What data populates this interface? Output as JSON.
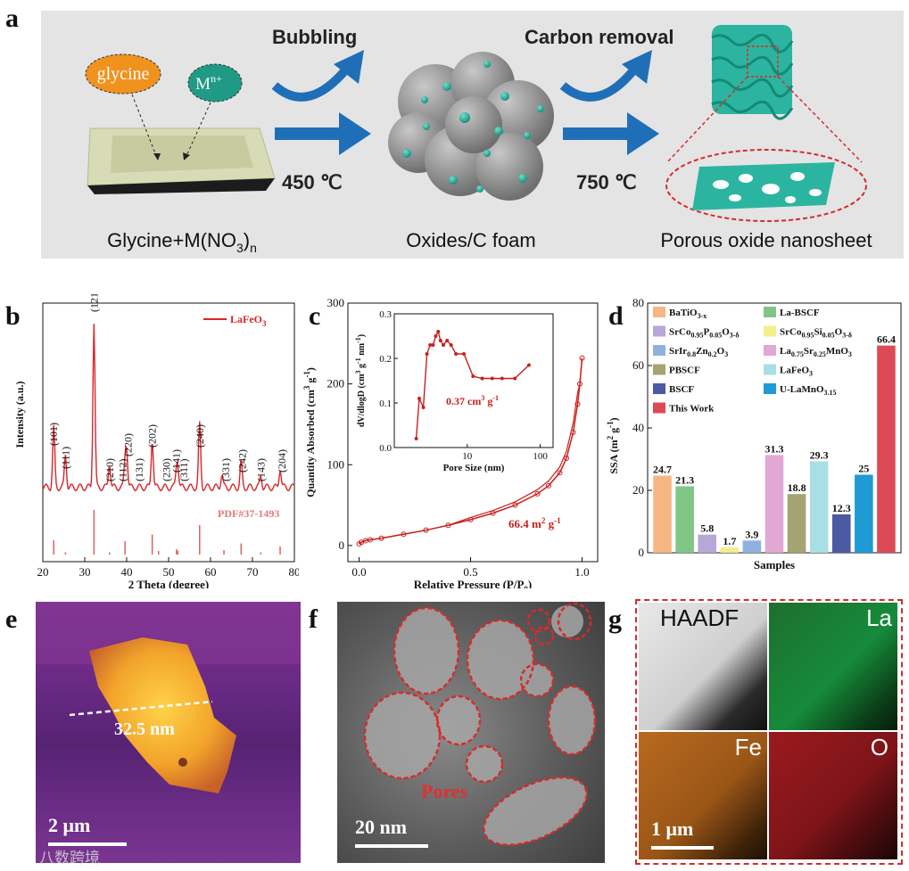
{
  "panel_a": {
    "letter": "a",
    "glycine_label": "glycine",
    "ion_label_base": "M",
    "ion_label_sup": "n+",
    "step1_label": "Bubbling",
    "step1_temp": "450 ℃",
    "step2_label": "Carbon removal",
    "step2_temp": "750 ℃",
    "start_label_main": "Glycine+M(NO",
    "start_label_sub1": "3",
    "start_label_close": ")",
    "start_label_sub2": "n",
    "mid_label": "Oxides/C foam",
    "end_label": "Porous oxide nanosheet",
    "colors": {
      "background": "#e6e6e6",
      "arrow": "#1f6fb8",
      "glycine": "#f0921e",
      "ion": "#1e9a85",
      "oxide": "#2bb5a0",
      "sphere": "#8e8e8e",
      "dashed": "#d62b2b"
    }
  },
  "panel_b": {
    "letter": "b",
    "legend": "LaFeO",
    "legend_sub": "3",
    "reference": "PDF#37-1493",
    "xlabel": "2 Theta (degree)",
    "ylabel": "Intensity (a.u.)",
    "x_ticks": [
      "20",
      "30",
      "40",
      "50",
      "60",
      "70",
      "80"
    ],
    "peak_labels": [
      "(101)",
      "(111)",
      "(121)",
      "(210)",
      "(112)",
      "(220)",
      "(131)",
      "(202)",
      "(230)",
      "(141)",
      "(311)",
      "(240)",
      "(331)",
      "(242)",
      "(143)",
      "(204)"
    ],
    "color": "#d9252b"
  },
  "panel_c": {
    "letter": "c",
    "xlabel": "Relative Pressure (P/P",
    "xlabel_sub": "0",
    "xlabel_close": ")",
    "ylabel": "Quantity Absorbed (cm",
    "ylabel_sup": "3",
    "ylabel_rest": " g",
    "ylabel_sup2": "-1",
    "ylabel_close": ")",
    "x_ticks": [
      "0.0",
      "0.5",
      "1.0"
    ],
    "y_ticks": [
      "0",
      "100",
      "200",
      "300"
    ],
    "surface_area": "66.4 m",
    "surface_area_sup": "2",
    "surface_area_rest": " g",
    "surface_area_sup2": "-1",
    "inset": {
      "xlabel": "Pore Size (nm)",
      "ylabel": "dV/dlogD (cm",
      "ylabel_sup": "3",
      "ylabel_rest": " g",
      "ylabel_sup2": "-1",
      "ylabel_rest2": " nm",
      "ylabel_sup3": "-1",
      "ylabel_close": ")",
      "x_ticks": [
        "10",
        "100"
      ],
      "y_ticks": [
        "0.0",
        "0.1",
        "0.2",
        "0.3"
      ],
      "pore_volume": "0.37 cm",
      "pore_volume_sup": "3",
      "pore_volume_rest": " g",
      "pore_volume_sup2": "-1"
    },
    "color": "#c8201f"
  },
  "panel_d": {
    "letter": "d",
    "xlabel": "Samples",
    "ylabel": "SSA (m",
    "ylabel_sup": "2",
    "ylabel_rest": " g",
    "ylabel_sup2": "-1",
    "ylabel_close": ")",
    "y_ticks": [
      "0",
      "20",
      "40",
      "60",
      "80"
    ]
  },
  "panel_e": {
    "letter": "e",
    "height_label": "32.5 nm",
    "scale_label": "2 μm"
  },
  "panel_f": {
    "letter": "f",
    "pores_label": "Pores",
    "scale_label": "20 nm"
  },
  "panel_g": {
    "letter": "g",
    "maps": [
      "HAADF",
      "La",
      "Fe",
      "O"
    ],
    "scale_label": "1 μm"
  },
  "watermark": "八数跨境",
  "chart_data": [
    {
      "type": "bar",
      "categories": [
        "BaTiO3-x",
        "La-BSCF",
        "SrCo0.95P0.05O3-δ",
        "SrCo0.95Si0.05O3-δ",
        "SrIr0.8Zn0.2O3",
        "La0.75Sr0.25MnO3",
        "PBSCF",
        "LaFeO3",
        "BSCF",
        "U-LaMnO3.15",
        "This Work"
      ],
      "values": [
        24.7,
        21.3,
        5.8,
        1.7,
        3.9,
        31.3,
        18.8,
        29.3,
        12.3,
        25,
        66.4
      ],
      "value_labels": [
        "24.7",
        "21.3",
        "5.8",
        "1.7",
        "3.9",
        "31.3",
        "18.8",
        "29.3",
        "12.3",
        "25",
        "66.4"
      ],
      "colors": [
        "#f6b684",
        "#7fc687",
        "#b7a6d8",
        "#f2ee8a",
        "#8eb2de",
        "#e2a7d4",
        "#a5a372",
        "#a8dfe5",
        "#4c5aa3",
        "#1f9ad3",
        "#dc4a56"
      ],
      "legend_col1": [
        {
          "base": "BaTiO",
          "sub": "3-x",
          "rest": "",
          "sub2": "",
          "rest2": "",
          "sub3": ""
        },
        {
          "base": "SrCo",
          "sub": "0.95",
          "rest": "P",
          "sub2": "0.05",
          "rest2": "O",
          "sub3": "3-δ"
        },
        {
          "base": "SrIr",
          "sub": "0.8",
          "rest": "Zn",
          "sub2": "0.2",
          "rest2": "O",
          "sub3": "3"
        },
        {
          "base": "PBSCF",
          "sub": "",
          "rest": "",
          "sub2": "",
          "rest2": "",
          "sub3": ""
        },
        {
          "base": "BSCF",
          "sub": "",
          "rest": "",
          "sub2": "",
          "rest2": "",
          "sub3": ""
        },
        {
          "base": "This Work",
          "sub": "",
          "rest": "",
          "sub2": "",
          "rest2": "",
          "sub3": ""
        }
      ],
      "legend_col1_idx": [
        0,
        2,
        4,
        6,
        8,
        10
      ],
      "legend_col2": [
        {
          "base": "La-BSCF",
          "sub": "",
          "rest": "",
          "sub2": "",
          "rest2": "",
          "sub3": ""
        },
        {
          "base": "SrCo",
          "sub": "0.95",
          "rest": "Si",
          "sub2": "0.05",
          "rest2": "O",
          "sub3": "3-δ"
        },
        {
          "base": "La",
          "sub": "0.75",
          "rest": "Sr",
          "sub2": "0.25",
          "rest2": "MnO",
          "sub3": "3"
        },
        {
          "base": "LaFeO",
          "sub": "3",
          "rest": "",
          "sub2": "",
          "rest2": "",
          "sub3": ""
        },
        {
          "base": "U-LaMnO",
          "sub": "3.15",
          "rest": "",
          "sub2": "",
          "rest2": "",
          "sub3": ""
        }
      ],
      "legend_col2_idx": [
        1,
        3,
        5,
        7,
        9
      ],
      "xlabel": "Samples",
      "ylabel": "SSA (m2 g-1)",
      "ylim": [
        0,
        80
      ]
    },
    {
      "type": "line",
      "title": "",
      "series": [
        {
          "name": "LaFeO3",
          "x": [
            20,
            22.6,
            25.4,
            32.2,
            35.9,
            39.6,
            40.0,
            46.1,
            51.9,
            52.2,
            57.4,
            62.7,
            67.3,
            72.0,
            76.6,
            80
          ],
          "y": [
            0.08,
            0.36,
            0.2,
            1.0,
            0.15,
            0.14,
            0.22,
            0.3,
            0.1,
            0.11,
            0.38,
            0.08,
            0.15,
            0.07,
            0.12,
            0.06
          ]
        }
      ],
      "reference_peaks": [
        22.6,
        25.4,
        32.2,
        35.9,
        39.6,
        46.1,
        47.6,
        51.9,
        52.2,
        57.4,
        63.2,
        67.3,
        72.0,
        76.6
      ],
      "reference_heights": [
        0.32,
        0.05,
        1.0,
        0.05,
        0.3,
        0.45,
        0.08,
        0.12,
        0.08,
        0.66,
        0.1,
        0.25,
        0.05,
        0.18
      ],
      "xlim": [
        20,
        80
      ]
    },
    {
      "type": "line",
      "series": [
        {
          "name": "isotherm",
          "x": [
            0.0,
            0.01,
            0.03,
            0.05,
            0.1,
            0.2,
            0.3,
            0.4,
            0.5,
            0.6,
            0.7,
            0.8,
            0.85,
            0.9,
            0.93,
            0.96,
            0.98,
            0.99,
            1.0
          ],
          "y": [
            2,
            4,
            6,
            7,
            9,
            14,
            19,
            25,
            32,
            40,
            50,
            64,
            74,
            90,
            108,
            140,
            175,
            200,
            232
          ]
        }
      ],
      "xlim": [
        0,
        1.05
      ],
      "ylim": [
        -20,
        300
      ]
    },
    {
      "type": "line",
      "series": [
        {
          "name": "pore size distribution",
          "x": [
            2.0,
            2.2,
            2.5,
            2.8,
            3.1,
            3.4,
            3.7,
            4.0,
            4.3,
            4.7,
            5.3,
            6.0,
            7.0,
            9.0,
            12,
            16,
            22,
            30,
            45,
            70
          ],
          "y": [
            0.02,
            0.11,
            0.09,
            0.21,
            0.23,
            0.23,
            0.25,
            0.26,
            0.24,
            0.23,
            0.24,
            0.23,
            0.21,
            0.21,
            0.16,
            0.155,
            0.155,
            0.155,
            0.155,
            0.185
          ]
        }
      ],
      "xlim_log": [
        1,
        150
      ],
      "ylim": [
        0,
        0.3
      ]
    }
  ]
}
